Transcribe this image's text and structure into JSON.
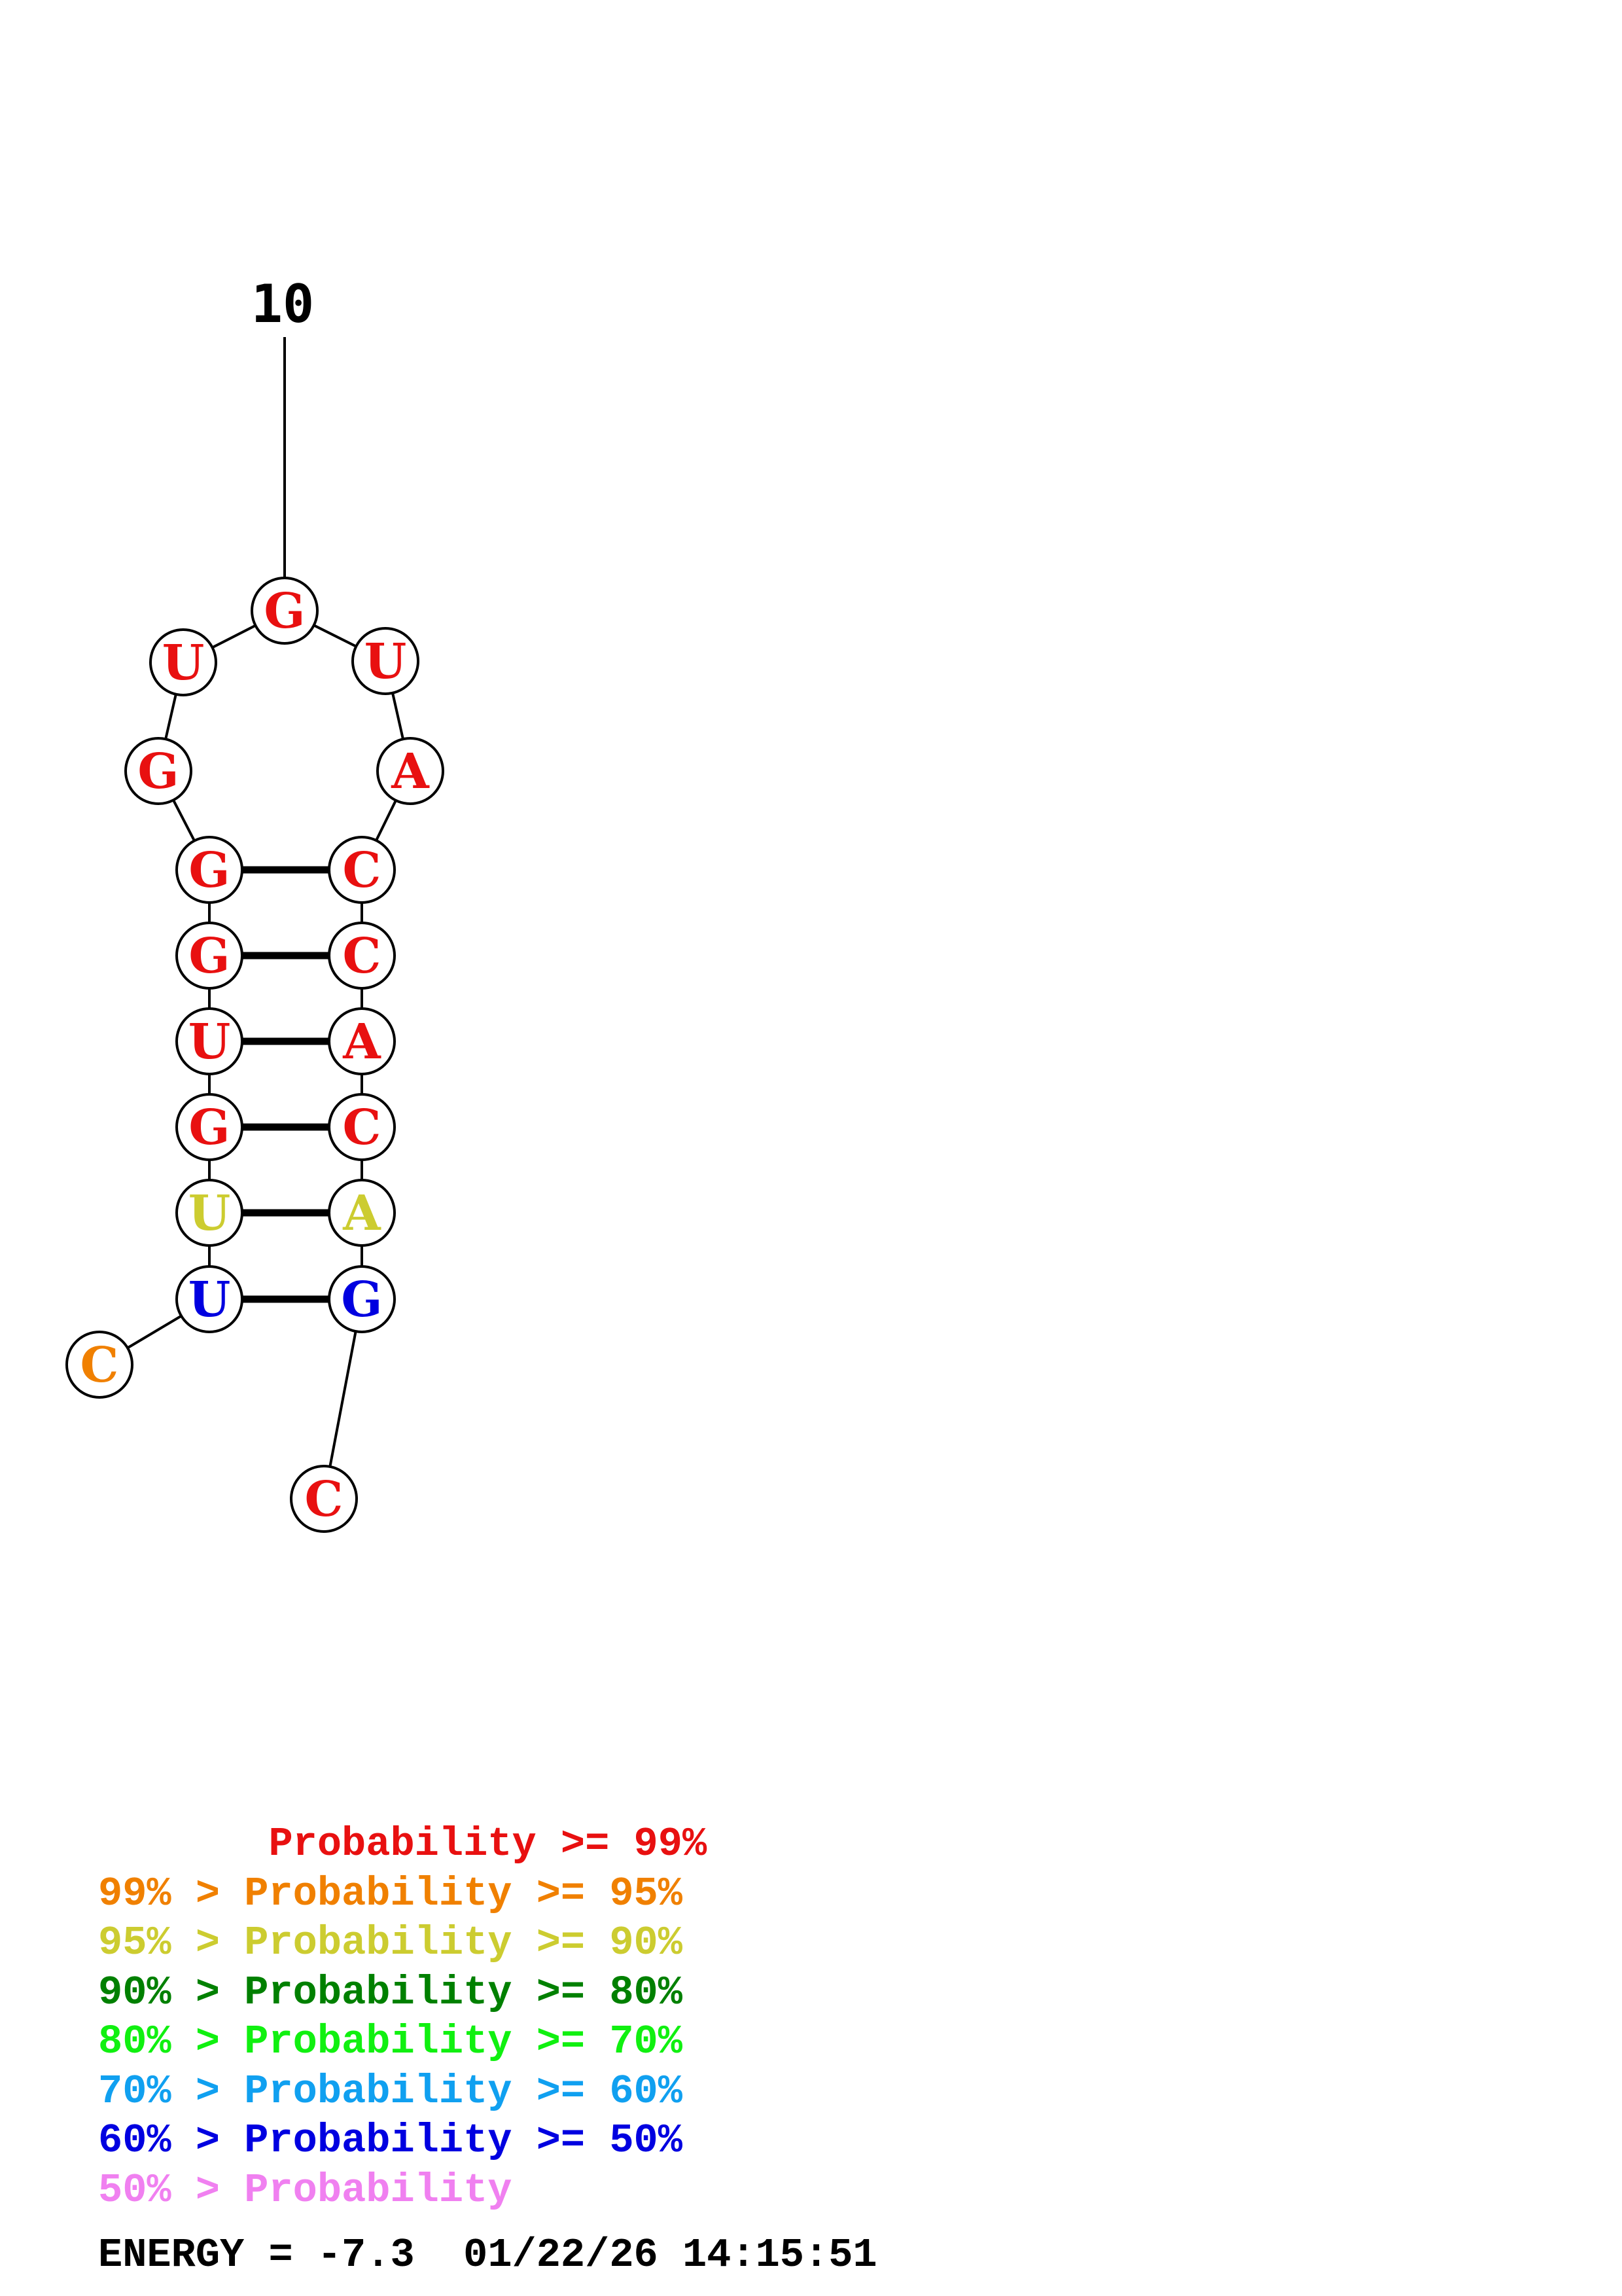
{
  "structure": {
    "position_label": "10",
    "nucleotides": [
      {
        "base": "C",
        "color": "#f08000"
      },
      {
        "base": "U",
        "color": "#0000e0"
      },
      {
        "base": "U",
        "color": "#cccc30"
      },
      {
        "base": "G",
        "color": "#e81010"
      },
      {
        "base": "U",
        "color": "#e81010"
      },
      {
        "base": "G",
        "color": "#e81010"
      },
      {
        "base": "G",
        "color": "#e81010"
      },
      {
        "base": "G",
        "color": "#e81010"
      },
      {
        "base": "U",
        "color": "#e81010"
      },
      {
        "base": "G",
        "color": "#e81010"
      },
      {
        "base": "U",
        "color": "#e81010"
      },
      {
        "base": "A",
        "color": "#e81010"
      },
      {
        "base": "C",
        "color": "#e81010"
      },
      {
        "base": "C",
        "color": "#e81010"
      },
      {
        "base": "A",
        "color": "#e81010"
      },
      {
        "base": "C",
        "color": "#e81010"
      },
      {
        "base": "A",
        "color": "#cccc30"
      },
      {
        "base": "G",
        "color": "#0000e0"
      },
      {
        "base": "C",
        "color": "#e81010"
      }
    ],
    "pairs": [
      [
        2,
        18
      ],
      [
        3,
        17
      ],
      [
        4,
        16
      ],
      [
        5,
        15
      ],
      [
        6,
        14
      ],
      [
        7,
        13
      ]
    ]
  },
  "legend": [
    {
      "text": "       Probability >= 99%",
      "color": "#e81010"
    },
    {
      "text": "99% > Probability >= 95%",
      "color": "#f08000"
    },
    {
      "text": "95% > Probability >= 90%",
      "color": "#cccc30"
    },
    {
      "text": "90% > Probability >= 80%",
      "color": "#008000"
    },
    {
      "text": "80% > Probability >= 70%",
      "color": "#10f010"
    },
    {
      "text": "70% > Probability >= 60%",
      "color": "#10a0f0"
    },
    {
      "text": "60% > Probability >= 50%",
      "color": "#0000e0"
    },
    {
      "text": "50% > Probability",
      "color": "#f080f0"
    }
  ],
  "footer": {
    "energy": "ENERGY = -7.3",
    "timestamp": "01/22/26 14:15:51"
  }
}
